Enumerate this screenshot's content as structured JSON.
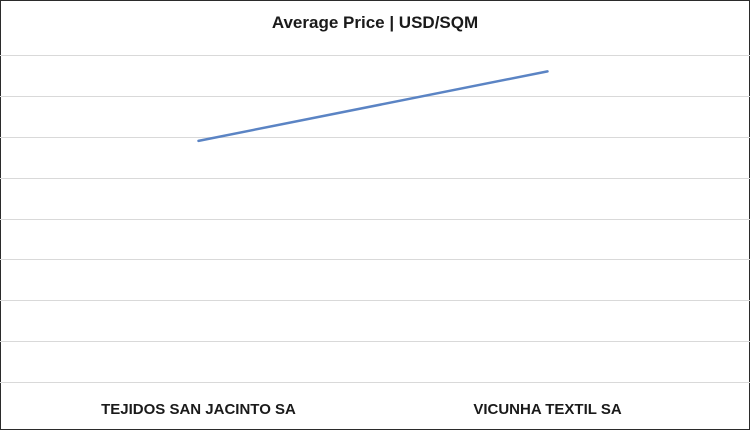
{
  "chart_data": {
    "type": "line",
    "title": "Average Price | USD/SQM",
    "categories": [
      "TEJIDOS SAN JACINTO SA",
      "VICUNHA TEXTIL SA"
    ],
    "series": [
      {
        "values": [
          5.9,
          7.6
        ]
      }
    ],
    "ylim": [
      0,
      8
    ],
    "grid": true,
    "line_color": "#5b84c4",
    "grid_color": "#d9d9d9"
  }
}
